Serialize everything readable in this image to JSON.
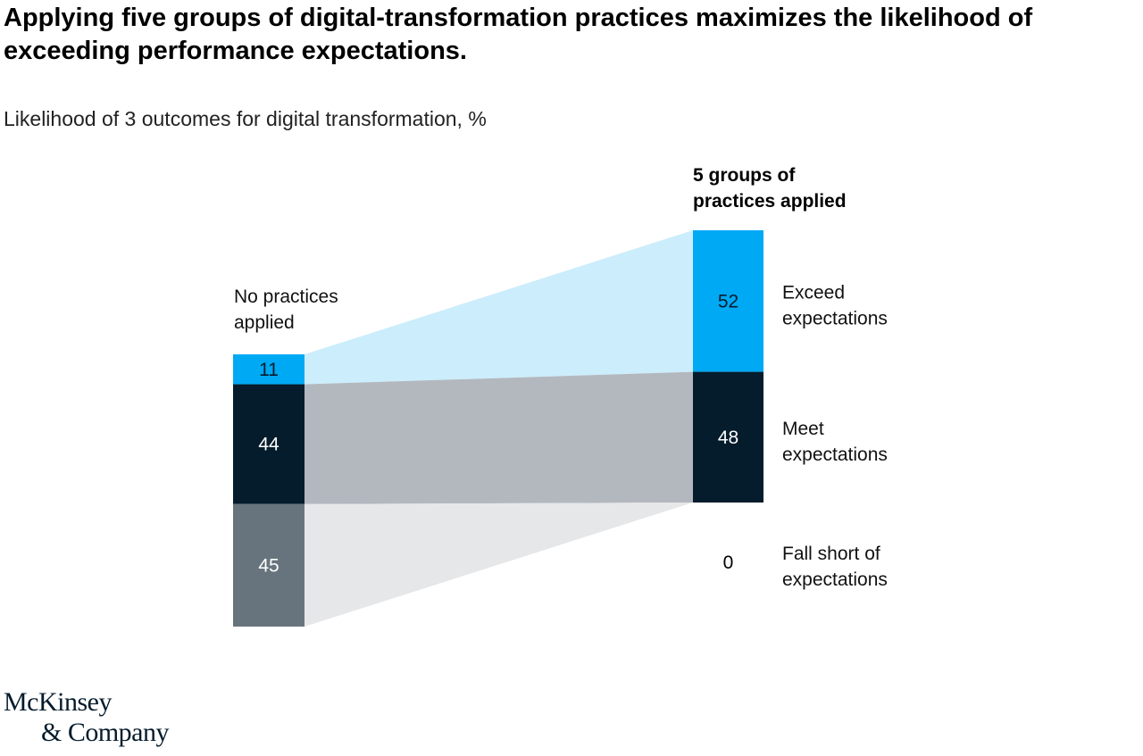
{
  "title": "Applying five groups of digital-transformation practices maximizes the likelihood of exceeding performance expectations.",
  "subtitle": "Likelihood of 3 outcomes for digital transformation, %",
  "logo": {
    "line1": "McKinsey",
    "line2": "& Company"
  },
  "chart_data": {
    "type": "bar",
    "subtype": "stacked-bar-with-flows",
    "title": "Likelihood of 3 outcomes for digital transformation, %",
    "categories": [
      "No practices applied",
      "5 groups of practices applied"
    ],
    "series": [
      {
        "name": "Exceed expectations",
        "values": [
          11,
          52
        ],
        "color": "#00A9F4",
        "flow_color": "#CCEDFB",
        "label_color": "#051C2C"
      },
      {
        "name": "Meet expectations",
        "values": [
          44,
          48
        ],
        "color": "#051C2C",
        "flow_color": "#B3B8BF",
        "label_color": "#FFFFFF"
      },
      {
        "name": "Fall short of expectations",
        "values": [
          45,
          0
        ],
        "color": "#67747D",
        "flow_color": "#E6E7E9",
        "label_color": "#FFFFFF"
      }
    ],
    "category_labels": {
      "left": [
        "No practices",
        "applied"
      ],
      "right": [
        "5 groups of",
        "practices applied"
      ]
    },
    "series_labels": [
      [
        "Exceed",
        "expectations"
      ],
      [
        "Meet",
        "expectations"
      ],
      [
        "Fall short of",
        "expectations"
      ]
    ],
    "ylim": [
      0,
      100
    ]
  }
}
